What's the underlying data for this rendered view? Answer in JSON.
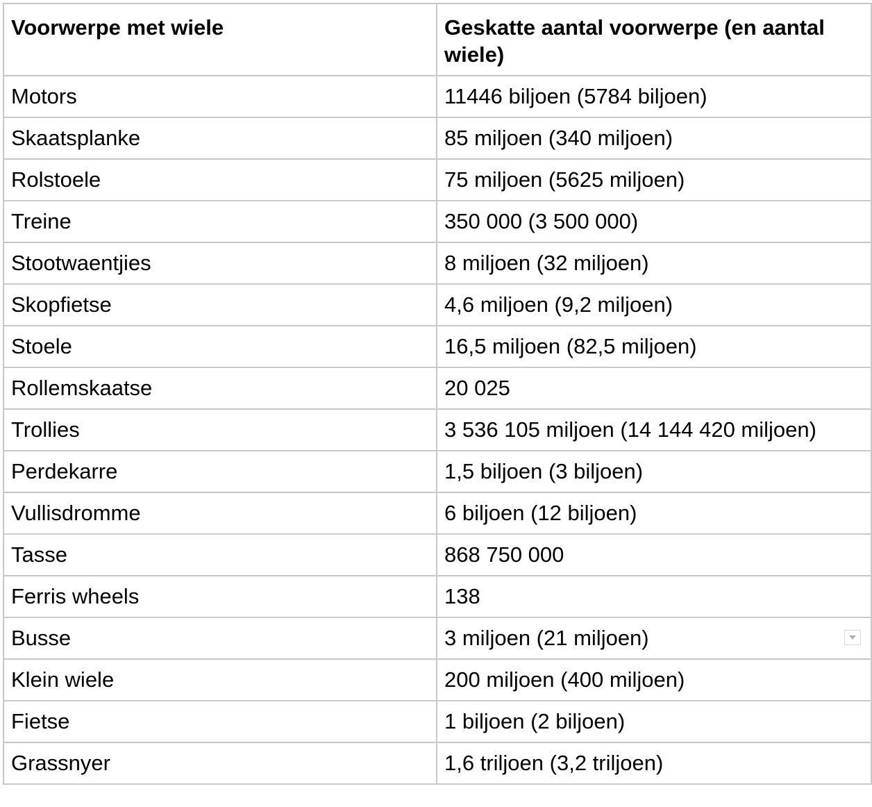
{
  "table": {
    "headers": {
      "col1": "Voorwerpe met wiele",
      "col2": "Geskatte aantal voorwerpe (en aantal wiele)"
    },
    "rows": [
      {
        "item": "Motors",
        "value": "11446 biljoen (5784 biljoen)"
      },
      {
        "item": "Skaatsplanke",
        "value": "85 miljoen (340 miljoen)"
      },
      {
        "item": "Rolstoele",
        "value": "75 miljoen (5625 miljoen)"
      },
      {
        "item": "Treine",
        "value": "350 000 (3 500 000)"
      },
      {
        "item": "Stootwaentjies",
        "value": "8 miljoen (32 miljoen)"
      },
      {
        "item": "Skopfietse",
        "value": "4,6 miljoen (9,2 miljoen)"
      },
      {
        "item": "Stoele",
        "value": "16,5 miljoen (82,5 miljoen)"
      },
      {
        "item": "Rollemskaatse",
        "value": "20 025"
      },
      {
        "item": "Trollies",
        "value": "3 536 105 miljoen (14 144 420 miljoen)"
      },
      {
        "item": "Perdekarre",
        "value": "1,5 biljoen (3 biljoen)"
      },
      {
        "item": "Vullisdromme",
        "value": "6 biljoen (12 biljoen)"
      },
      {
        "item": "Tasse",
        "value": "868 750 000"
      },
      {
        "item": "Ferris wheels",
        "value": "138"
      },
      {
        "item": "Busse",
        "value": "3 miljoen (21 miljoen)"
      },
      {
        "item": "Klein wiele",
        "value": "200 miljoen (400 miljoen)"
      },
      {
        "item": "Fietse",
        "value": "1 biljoen (2 biljoen)"
      },
      {
        "item": "Grassnyer",
        "value": "1,6 triljoen (3,2 triljoen)"
      }
    ]
  },
  "icons": {
    "dropdown": "chevron-down-icon"
  },
  "colors": {
    "border": "#c8c8c8",
    "text": "#000000",
    "background": "#ffffff"
  }
}
